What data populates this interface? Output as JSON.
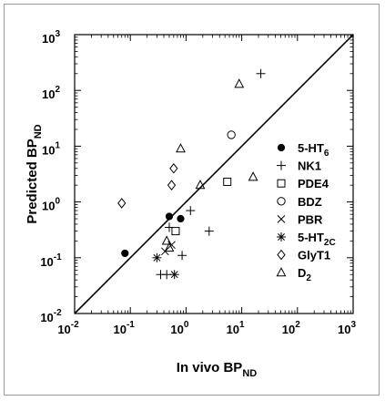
{
  "chart_data": {
    "type": "scatter",
    "xscale": "log",
    "yscale": "log",
    "xlim": [
      0.01,
      1000
    ],
    "ylim": [
      0.01,
      1000
    ],
    "x_ticks": [
      {
        "base": "10",
        "exp": "-2"
      },
      {
        "base": "10",
        "exp": "-1"
      },
      {
        "base": "10",
        "exp": "0"
      },
      {
        "base": "10",
        "exp": "1"
      },
      {
        "base": "10",
        "exp": "2"
      },
      {
        "base": "10",
        "exp": "3"
      }
    ],
    "y_ticks": [
      {
        "base": "10",
        "exp": "-2"
      },
      {
        "base": "10",
        "exp": "-1"
      },
      {
        "base": "10",
        "exp": "0"
      },
      {
        "base": "10",
        "exp": "1"
      },
      {
        "base": "10",
        "exp": "2"
      },
      {
        "base": "10",
        "exp": "3"
      }
    ],
    "xlabel": {
      "main": "In vivo BP",
      "sub": "ND"
    },
    "ylabel": {
      "main": "Predicted BP",
      "sub": "ND"
    },
    "identity_line": true,
    "grid": false,
    "legend_position": "right",
    "series": [
      {
        "name": "5-HT",
        "name_sub": "6",
        "marker": "filled-circle",
        "points": [
          [
            0.08,
            0.12
          ],
          [
            0.5,
            0.55
          ],
          [
            0.8,
            0.5
          ]
        ]
      },
      {
        "name": "NK1",
        "name_sub": "",
        "marker": "plus",
        "points": [
          [
            0.35,
            0.05
          ],
          [
            0.45,
            0.05
          ],
          [
            0.5,
            0.35
          ],
          [
            0.85,
            0.11
          ],
          [
            1.2,
            0.7
          ],
          [
            2.6,
            0.3
          ],
          [
            22,
            200
          ]
        ]
      },
      {
        "name": "PDE4",
        "name_sub": "",
        "marker": "square",
        "points": [
          [
            0.65,
            0.3
          ],
          [
            5.5,
            2.3
          ]
        ]
      },
      {
        "name": "BDZ",
        "name_sub": "",
        "marker": "circle",
        "points": [
          [
            6.5,
            16
          ]
        ]
      },
      {
        "name": "PBR",
        "name_sub": "",
        "marker": "x",
        "points": [
          [
            0.42,
            0.13
          ],
          [
            0.55,
            0.17
          ]
        ]
      },
      {
        "name": "5-HT",
        "name_sub": "2C",
        "marker": "asterisk",
        "points": [
          [
            0.3,
            0.1
          ],
          [
            0.62,
            0.05
          ]
        ]
      },
      {
        "name": "GlyT1",
        "name_sub": "",
        "marker": "diamond",
        "points": [
          [
            0.07,
            0.95
          ],
          [
            0.55,
            2.0
          ],
          [
            0.6,
            4.0
          ]
        ]
      },
      {
        "name": "D",
        "name_sub": "2",
        "marker": "triangle",
        "points": [
          [
            0.45,
            0.2
          ],
          [
            0.5,
            0.15
          ],
          [
            0.8,
            9.0
          ],
          [
            1.8,
            2.0
          ],
          [
            9,
            130
          ],
          [
            16,
            2.8
          ]
        ]
      }
    ]
  }
}
